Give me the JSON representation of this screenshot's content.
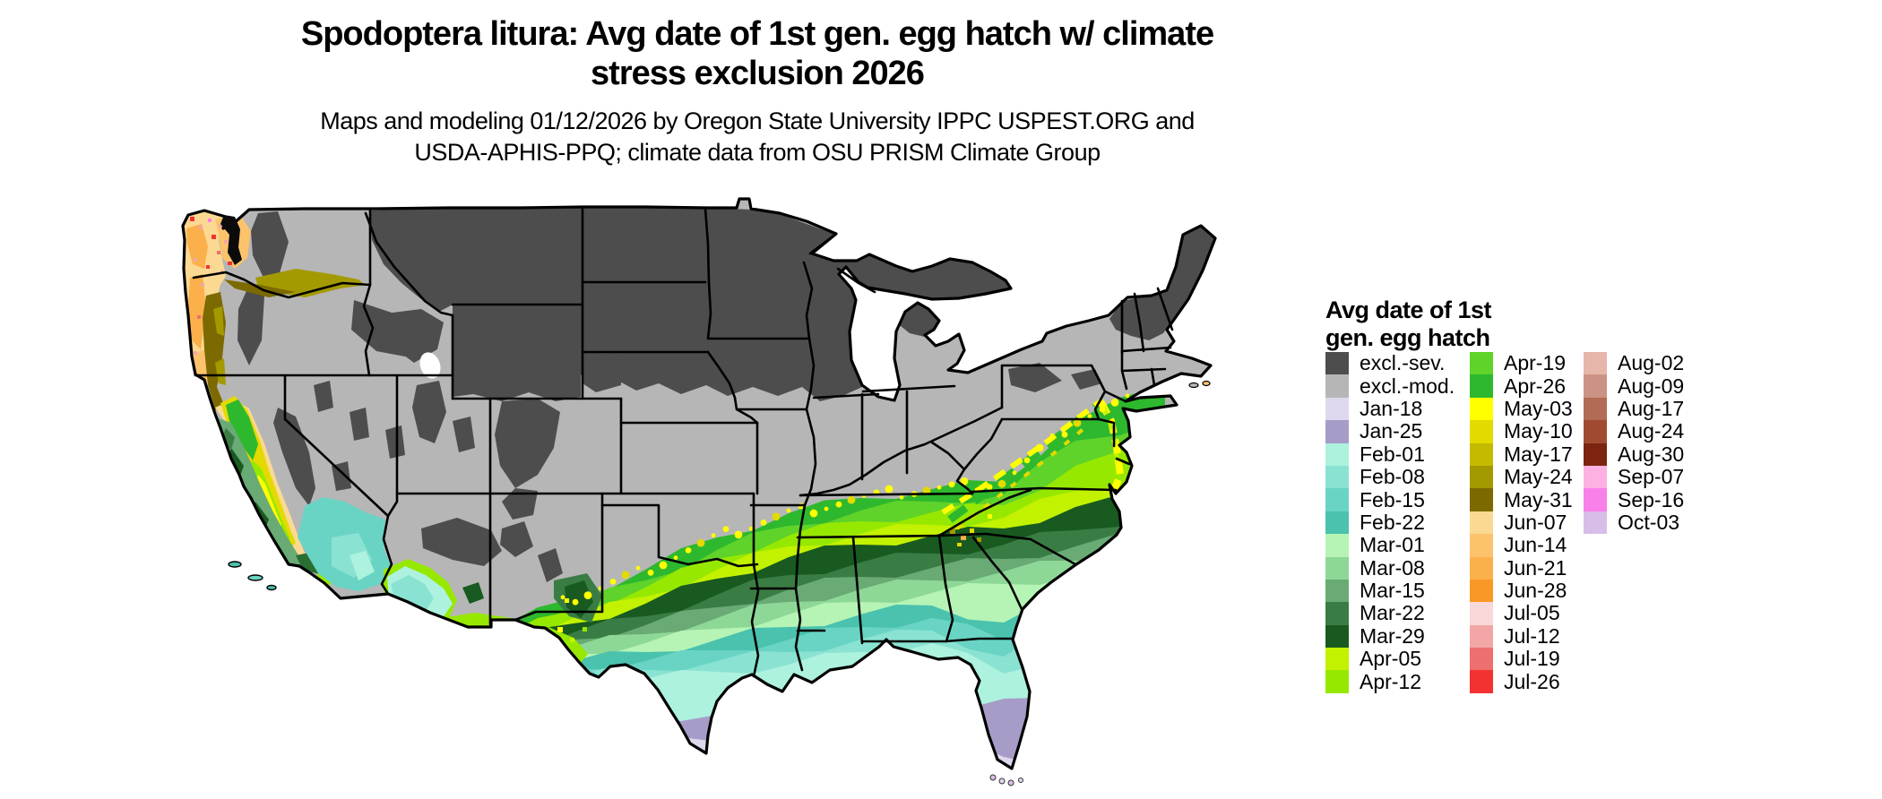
{
  "title": {
    "line1": "Spodoptera litura: Avg date of 1st gen. egg hatch w/ climate",
    "line2": "stress exclusion 2026"
  },
  "subtitle": {
    "line1": "Maps and modeling 01/12/2026 by Oregon State University IPPC USPEST.ORG and",
    "line2": "USDA-APHIS-PPQ; climate data from OSU PRISM Climate Group"
  },
  "legend": {
    "title_line1": "Avg date of 1st",
    "title_line2": "gen. egg hatch",
    "columns": [
      [
        {
          "label": "excl.-sev.",
          "color": "#4d4d4d"
        },
        {
          "label": "excl.-mod.",
          "color": "#b6b6b6"
        },
        {
          "label": "Jan-18",
          "color": "#ded7ed"
        },
        {
          "label": "Jan-25",
          "color": "#a79cc8"
        },
        {
          "label": "Feb-01",
          "color": "#adf2de"
        },
        {
          "label": "Feb-08",
          "color": "#8ae3d2"
        },
        {
          "label": "Feb-15",
          "color": "#69d4c4"
        },
        {
          "label": "Feb-22",
          "color": "#4ac2ae"
        },
        {
          "label": "Mar-01",
          "color": "#b5f4b5"
        },
        {
          "label": "Mar-08",
          "color": "#8ed897"
        },
        {
          "label": "Mar-15",
          "color": "#69aa75"
        },
        {
          "label": "Mar-22",
          "color": "#3a7d44"
        },
        {
          "label": "Mar-29",
          "color": "#185a20"
        },
        {
          "label": "Apr-05",
          "color": "#c2f200"
        },
        {
          "label": "Apr-12",
          "color": "#97e800"
        }
      ],
      [
        {
          "label": "Apr-19",
          "color": "#5fd32a"
        },
        {
          "label": "Apr-26",
          "color": "#2eb82e"
        },
        {
          "label": "May-03",
          "color": "#ffff00"
        },
        {
          "label": "May-10",
          "color": "#e3da00"
        },
        {
          "label": "May-17",
          "color": "#c4ba00"
        },
        {
          "label": "May-24",
          "color": "#a39a00"
        },
        {
          "label": "May-31",
          "color": "#7c6a00"
        },
        {
          "label": "Jun-07",
          "color": "#fcd992"
        },
        {
          "label": "Jun-14",
          "color": "#fcc36c"
        },
        {
          "label": "Jun-21",
          "color": "#fbb04c"
        },
        {
          "label": "Jun-28",
          "color": "#fa9827"
        },
        {
          "label": "Jul-05",
          "color": "#f8d8d8"
        },
        {
          "label": "Jul-12",
          "color": "#f2a6a6"
        },
        {
          "label": "Jul-19",
          "color": "#ee6f6f"
        },
        {
          "label": "Jul-26",
          "color": "#f43131"
        }
      ],
      [
        {
          "label": "Aug-02",
          "color": "#e7b6aa"
        },
        {
          "label": "Aug-09",
          "color": "#cc9384"
        },
        {
          "label": "Aug-17",
          "color": "#b26b55"
        },
        {
          "label": "Aug-24",
          "color": "#a04b31"
        },
        {
          "label": "Aug-30",
          "color": "#7c2410"
        },
        {
          "label": "Sep-07",
          "color": "#fcb1e2"
        },
        {
          "label": "Sep-16",
          "color": "#f980e8"
        },
        {
          "label": "Oct-03",
          "color": "#d9bde9"
        }
      ]
    ]
  }
}
